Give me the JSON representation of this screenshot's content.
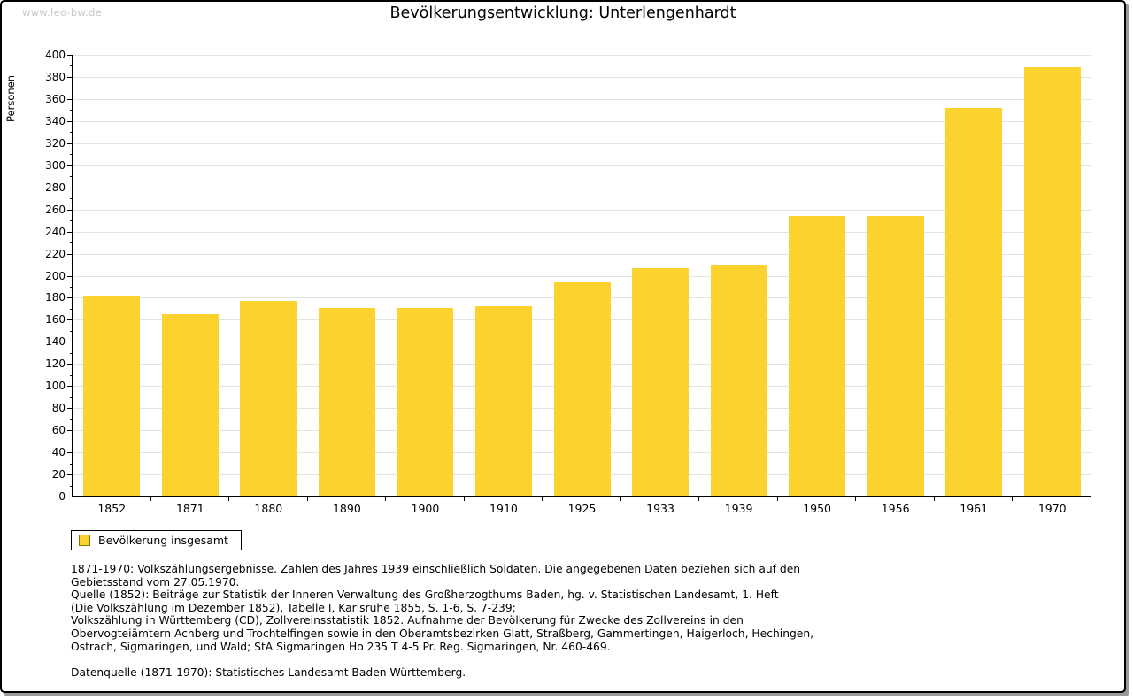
{
  "page": {
    "watermark": "www.leo-bw.de",
    "title": "Bevölkerungsentwicklung: Unterlengenhardt"
  },
  "chart_data": {
    "type": "bar",
    "title": "Bevölkerungsentwicklung: Unterlengenhardt",
    "xlabel": "",
    "ylabel": "Personen",
    "categories": [
      "1852",
      "1871",
      "1880",
      "1890",
      "1900",
      "1910",
      "1925",
      "1933",
      "1939",
      "1950",
      "1956",
      "1961",
      "1970"
    ],
    "series": [
      {
        "name": "Bevölkerung insgesamt",
        "values": [
          182,
          165,
          177,
          171,
          171,
          172,
          194,
          207,
          209,
          254,
          254,
          352,
          389
        ]
      }
    ],
    "ylim": [
      0,
      400
    ],
    "ytick_step": 20,
    "yminor_step": 10,
    "grid": true,
    "legend_position": "bottom-left"
  },
  "legend": {
    "label": "Bevölkerung insgesamt"
  },
  "footnotes": {
    "lines": [
      "1871-1970: Volkszählungsergebnisse. Zahlen des Jahres 1939 einschließlich Soldaten. Die angegebenen Daten beziehen sich auf den",
      "Gebietsstand vom 27.05.1970.",
      "Quelle (1852): Beiträge zur Statistik der Inneren Verwaltung des Großherzogthums Baden, hg. v. Statistischen Landesamt, 1. Heft",
      "(Die Volkszählung im Dezember 1852), Tabelle I, Karlsruhe 1855, S. 1-6, S. 7-239;",
      "Volkszählung in Württemberg (CD), Zollvereinsstatistik 1852. Aufnahme der Bevölkerung für Zwecke des Zollvereins in den",
      "Obervogteiämtern Achberg und Trochtelfingen sowie in den Oberamtsbezirken Glatt, Straßberg, Gammertingen, Haigerloch, Hechingen,",
      "Ostrach, Sigmaringen, und Wald; StA Sigmaringen Ho 235 T 4-5 Pr. Reg. Sigmaringen, Nr. 460-469."
    ],
    "datasource": "Datenquelle (1871-1970): Statistisches Landesamt Baden-Württemberg."
  },
  "colors": {
    "bar": "#FCD32E",
    "grid": "#E2E2E2",
    "axis": "#000000",
    "watermark": "#C8C8C8",
    "border_shadow": "#999999",
    "legend_swatch_border": "#8A7400"
  }
}
